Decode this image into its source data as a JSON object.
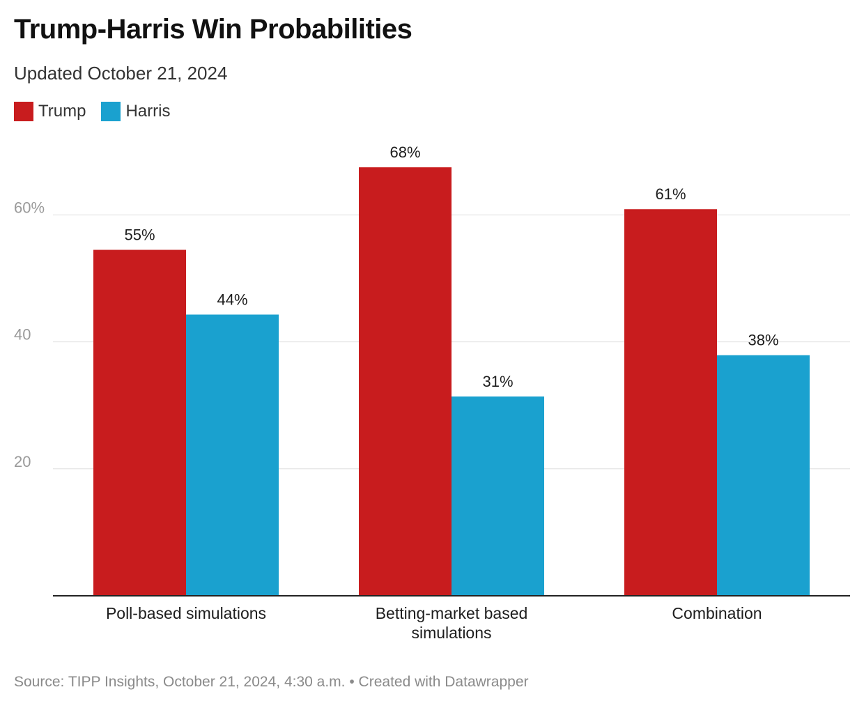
{
  "title": "Trump-Harris Win Probabilities",
  "subtitle": "Updated October 21, 2024",
  "footer": {
    "source": "Source: TIPP Insights, October 21, 2024, 4:30 a.m.",
    "separator": "•",
    "credit": "Created with Datawrapper"
  },
  "colors": {
    "trump": "#c81c1e",
    "harris": "#1aa1cf",
    "grid": "#dddddd",
    "axis": "#222222",
    "tick": "#9a9a9a"
  },
  "chart_data": {
    "type": "bar",
    "title": "Trump-Harris Win Probabilities",
    "subtitle": "Updated October 21, 2024",
    "categories": [
      [
        "Poll-based simulations"
      ],
      [
        "Betting-market based",
        "simulations"
      ],
      [
        "Combination"
      ]
    ],
    "series": [
      {
        "name": "Trump",
        "values": [
          54.5,
          67.5,
          60.9
        ],
        "labels": [
          "55%",
          "68%",
          "61%"
        ],
        "color": "#c81c1e"
      },
      {
        "name": "Harris",
        "values": [
          44.3,
          31.4,
          37.9
        ],
        "labels": [
          "44%",
          "31%",
          "38%"
        ],
        "color": "#1aa1cf"
      }
    ],
    "yticks": [
      {
        "value": 20,
        "label": "20"
      },
      {
        "value": 40,
        "label": "40"
      },
      {
        "value": 60,
        "label": "60%"
      }
    ],
    "ylim": [
      0,
      73
    ],
    "xlabel": "",
    "ylabel": "",
    "grid": true,
    "legend": "top-left"
  }
}
